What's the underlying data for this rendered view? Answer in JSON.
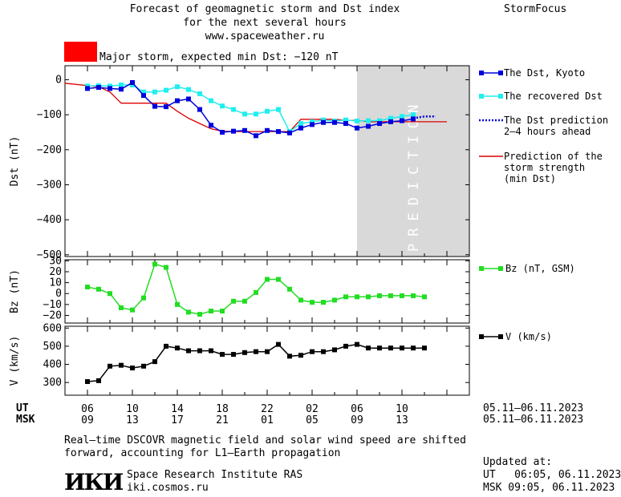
{
  "header": {
    "title_line1": "Forecast of geomagnetic storm and Dst index",
    "title_line2": "for the next several hours",
    "url": "www.spaceweather.ru",
    "brand": "StormFocus"
  },
  "status": {
    "label": "Major storm, expected min Dst: −120 nT",
    "color": "#ff0000"
  },
  "colors": {
    "dst_kyoto": "#0000dd",
    "dst_recovered": "#22eeee",
    "dst_prediction": "#0000dd",
    "storm_strength": "#dd0000",
    "bz": "#22dd22",
    "v": "#000000",
    "prediction_band": "#d9d9d9"
  },
  "chart_data": [
    {
      "type": "line",
      "ylabel": "Dst (nT)",
      "ylim": [
        -505,
        40
      ],
      "yticks": [
        "0",
        "−100",
        "−200",
        "−300",
        "−400",
        "−500"
      ],
      "ytick_values": [
        0,
        -100,
        -200,
        -300,
        -400,
        -500
      ],
      "grid": false,
      "prediction_band_label": "PREDICTION",
      "prediction_band_start_hour": 30,
      "series": [
        {
          "name": "The Dst, Kyoto",
          "x": [
            6,
            7,
            8,
            9,
            10,
            11,
            12,
            13,
            14,
            15,
            16,
            17,
            18,
            19,
            20,
            21,
            22,
            23,
            24,
            25,
            26,
            27,
            28,
            29,
            30,
            31,
            32,
            33,
            34,
            35
          ],
          "values": [
            -25,
            -22,
            -25,
            -27,
            -8,
            -45,
            -76,
            -77,
            -60,
            -55,
            -85,
            -130,
            -150,
            -147,
            -145,
            -160,
            -145,
            -148,
            -152,
            -138,
            -128,
            -122,
            -122,
            -125,
            -138,
            -133,
            -125,
            -120,
            -117,
            -112
          ]
        },
        {
          "name": "The recovered Dst",
          "x": [
            6,
            7,
            8,
            9,
            10,
            11,
            12,
            13,
            14,
            15,
            16,
            17,
            18,
            19,
            20,
            21,
            22,
            23,
            24,
            25,
            26,
            27,
            28,
            29,
            30,
            31,
            32,
            33,
            34,
            35
          ],
          "values": [
            -18,
            -17,
            -18,
            -15,
            -15,
            -35,
            -35,
            -30,
            -20,
            -28,
            -40,
            -60,
            -75,
            -85,
            -98,
            -98,
            -90,
            -85,
            -148,
            -125,
            -120,
            -115,
            -118,
            -115,
            -118,
            -117,
            -117,
            -110,
            -105,
            -100
          ]
        },
        {
          "name": "The Dst prediction 2–4 hours ahead",
          "x": [
            35,
            36,
            37
          ],
          "values": [
            -110,
            -105,
            -105
          ]
        },
        {
          "name": "Prediction of the storm strength (min Dst)",
          "x": [
            4,
            7,
            8,
            9,
            10,
            11,
            12,
            13,
            14,
            15,
            16,
            17,
            18,
            19,
            20,
            21,
            22,
            23,
            24,
            25,
            26,
            27,
            28,
            29,
            30,
            31,
            32,
            33,
            34,
            35,
            36,
            37,
            38
          ],
          "values": [
            -10,
            -20,
            -35,
            -67,
            -67,
            -67,
            -67,
            -67,
            -90,
            -110,
            -125,
            -140,
            -147,
            -148,
            -148,
            -148,
            -148,
            -148,
            -148,
            -113,
            -113,
            -113,
            -113,
            -116,
            -116,
            -120,
            -120,
            -120,
            -120,
            -120,
            -120,
            -120,
            -120
          ]
        }
      ]
    },
    {
      "type": "line",
      "ylabel": "Bz (nT)",
      "ylim": [
        -27,
        31
      ],
      "yticks": [
        "30",
        "20",
        "10",
        "0",
        "−10",
        "−20"
      ],
      "ytick_values": [
        30,
        20,
        10,
        0,
        -10,
        -20
      ],
      "series": [
        {
          "name": "Bz (nT, GSM)",
          "x": [
            6,
            7,
            8,
            9,
            10,
            11,
            12,
            13,
            14,
            15,
            16,
            17,
            18,
            19,
            20,
            21,
            22,
            23,
            24,
            25,
            26,
            27,
            28,
            29,
            30,
            31,
            32,
            33,
            34,
            35,
            36
          ],
          "values": [
            6,
            4,
            0,
            -13,
            -15,
            -4,
            27,
            24,
            -10,
            -17,
            -19,
            -16,
            -16,
            -7,
            -7,
            1,
            13,
            13,
            4,
            -6,
            -8,
            -8,
            -6,
            -3,
            -3,
            -3,
            -2,
            -2,
            -2,
            -2,
            -3
          ]
        }
      ]
    },
    {
      "type": "line",
      "ylabel": "V (km/s)",
      "ylim": [
        230,
        610
      ],
      "yticks": [
        "600",
        "500",
        "400",
        "300"
      ],
      "ytick_values": [
        600,
        500,
        400,
        300
      ],
      "series": [
        {
          "name": "V (km/s)",
          "x": [
            6,
            7,
            8,
            9,
            10,
            11,
            12,
            13,
            14,
            15,
            16,
            17,
            18,
            19,
            20,
            21,
            22,
            23,
            24,
            25,
            26,
            27,
            28,
            29,
            30,
            31,
            32,
            33,
            34,
            35,
            36
          ],
          "values": [
            305,
            310,
            390,
            395,
            380,
            390,
            415,
            500,
            490,
            475,
            475,
            475,
            455,
            455,
            465,
            470,
            470,
            510,
            445,
            450,
            470,
            470,
            480,
            500,
            510,
            490,
            490,
            490,
            490,
            490,
            490
          ]
        }
      ]
    }
  ],
  "x_axis": {
    "ut_label": "UT",
    "msk_label": "MSK",
    "ut_ticks": [
      "06",
      "10",
      "14",
      "18",
      "22",
      "02",
      "06",
      "10"
    ],
    "msk_ticks": [
      "09",
      "13",
      "17",
      "21",
      "01",
      "05",
      "09",
      "13"
    ],
    "date_range_ut": "05.11–06.11.2023",
    "date_range_msk": "05.11–06.11.2023"
  },
  "legend": {
    "dst_kyoto": "The Dst, Kyoto",
    "dst_recovered": "The recovered Dst",
    "dst_prediction_line1": "The Dst prediction",
    "dst_prediction_line2": "2–4 hours ahead",
    "storm_line1": "Prediction of the",
    "storm_line2": "storm strength",
    "storm_line3": "(min Dst)",
    "bz": "Bz (nT, GSM)",
    "v": "V (km/s)"
  },
  "footer": {
    "note_line1": "Real–time DSCOVR magnetic field and solar wind speed are shifted",
    "note_line2": "forward, accounting for L1–Earth propagation",
    "logo_text": "ИКИ",
    "institute": "Space Research Institute RAS",
    "site": "iki.cosmos.ru",
    "updated_label": "Updated at:",
    "updated_ut": "UT   06:05, 06.11.2023",
    "updated_msk": "MSK 09:05, 06.11.2023"
  }
}
